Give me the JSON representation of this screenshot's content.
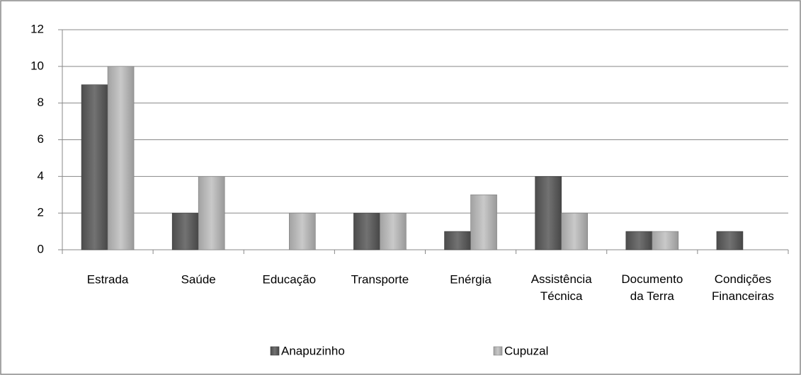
{
  "chart_data": {
    "type": "bar",
    "categories": [
      "Estrada",
      "Saúde",
      "Educação",
      "Transporte",
      "Enérgia",
      "Assistência Técnica",
      "Documento da Terra",
      "Condições Financeiras"
    ],
    "series": [
      {
        "name": "Anapuzinho",
        "color": "#595959",
        "values": [
          9,
          2,
          0,
          2,
          1,
          4,
          1,
          1
        ]
      },
      {
        "name": "Cupuzal",
        "color": "#bfbfbf",
        "values": [
          10,
          4,
          2,
          2,
          3,
          2,
          1,
          0
        ]
      }
    ],
    "ylim": [
      0,
      12
    ],
    "yticks": [
      0,
      2,
      4,
      6,
      8,
      10,
      12
    ],
    "grid": true,
    "legend": "bottom"
  }
}
